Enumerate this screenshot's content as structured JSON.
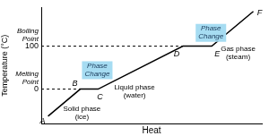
{
  "chart_data": {
    "type": "line",
    "xlabel": "Heat",
    "ylabel": "Temperature (°C)",
    "x": [
      8,
      46,
      67,
      167,
      201,
      250
    ],
    "values": [
      -63,
      0,
      0,
      100,
      100,
      181
    ],
    "point_labels": [
      "A",
      "B",
      "C",
      "D",
      "E",
      "F"
    ],
    "color": "#000000",
    "xlim": [
      0,
      260
    ],
    "ylim": [
      -80,
      190
    ],
    "yticks": [
      0,
      100
    ],
    "grid": false,
    "tick_labels": "y",
    "axis_notes": [
      {
        "lines": [
          "Boiling",
          "Point"
        ],
        "y": 100
      },
      {
        "lines": [
          "Melting",
          "Point"
        ],
        "y": 0
      }
    ],
    "phase_labels": [
      {
        "lines": [
          "Phase",
          "Change"
        ],
        "x": 66,
        "y": 44,
        "color": "#a6dcf2"
      },
      {
        "lines": [
          "Phase",
          "Change"
        ],
        "x": 200,
        "y": 131,
        "color": "#a6dcf2"
      }
    ],
    "annotations": [
      {
        "lines": [
          "Solid phase",
          "(ice)"
        ],
        "x": 48,
        "y": -55
      },
      {
        "lines": [
          "Liquid phase",
          "(water)"
        ],
        "x": 110,
        "y": -6
      },
      {
        "lines": [
          "Gas phase",
          "(steam)"
        ],
        "x": 232,
        "y": 83
      }
    ]
  }
}
